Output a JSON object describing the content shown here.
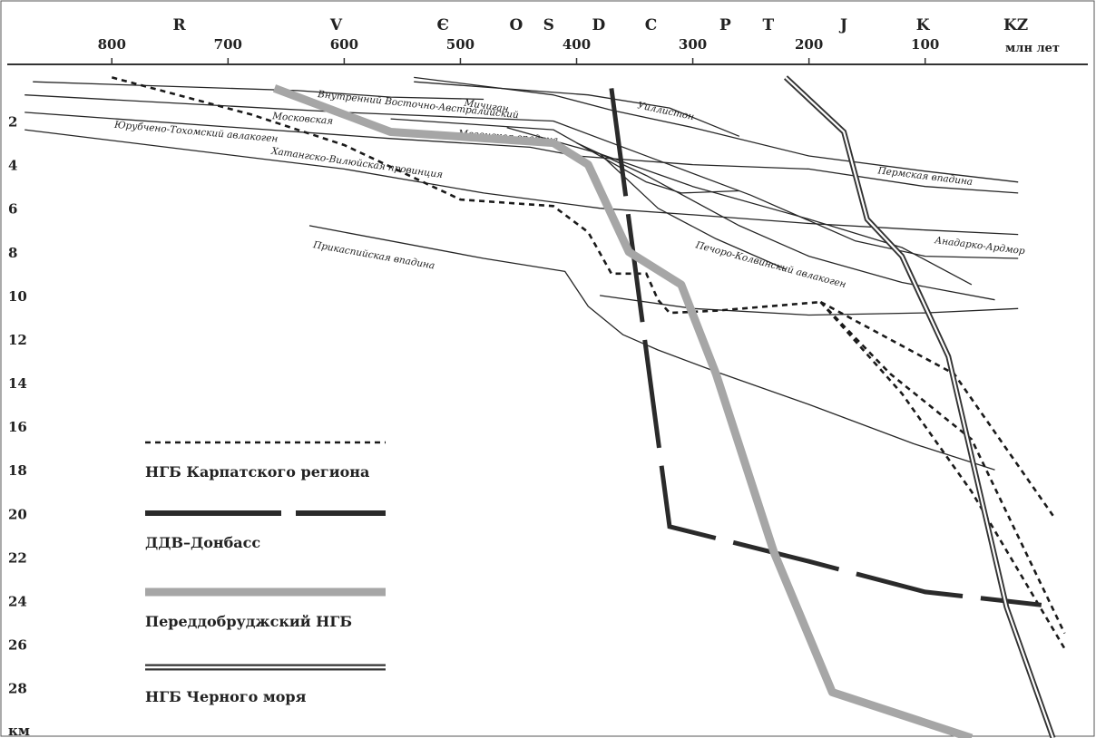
{
  "chart_data": {
    "type": "line",
    "x_axis": {
      "label": "млн лет",
      "reversed": true,
      "ticks": [
        800,
        700,
        600,
        500,
        400,
        300,
        200,
        100
      ],
      "range": [
        890,
        -40
      ],
      "periods": [
        {
          "label": "R",
          "age": 742
        },
        {
          "label": "V",
          "age": 607
        },
        {
          "label": "Є",
          "age": 515
        },
        {
          "label": "O",
          "age": 452
        },
        {
          "label": "S",
          "age": 424
        },
        {
          "label": "D",
          "age": 381
        },
        {
          "label": "C",
          "age": 336
        },
        {
          "label": "P",
          "age": 272
        },
        {
          "label": "T",
          "age": 235
        },
        {
          "label": "J",
          "age": 170
        },
        {
          "label": "K",
          "age": 102
        },
        {
          "label": "KZ",
          "age": 22
        }
      ]
    },
    "y_axis": {
      "label": "км",
      "reversed": true,
      "ticks": [
        2,
        4,
        6,
        8,
        10,
        12,
        14,
        16,
        18,
        20,
        22,
        24,
        26,
        28
      ],
      "range": [
        -0.6,
        30.3
      ]
    },
    "basins": [
      {
        "name": "Внутренний Восточно-Австралийский",
        "points": [
          [
            868,
            0.2
          ],
          [
            640,
            0.6
          ],
          [
            560,
            0.9
          ],
          [
            480,
            1.0
          ]
        ],
        "label_at": [
          623,
          0.9
        ],
        "label_angle": 6
      },
      {
        "name": "Мичиган",
        "points": [
          [
            540,
            0.0
          ],
          [
            420,
            0.8
          ],
          [
            370,
            1.5
          ],
          [
            300,
            2.3
          ],
          [
            200,
            3.6
          ],
          [
            100,
            4.3
          ],
          [
            20,
            4.8
          ]
        ],
        "label_at": [
          497,
          1.3
        ],
        "label_angle": 8
      },
      {
        "name": "Уиллистон",
        "points": [
          [
            540,
            0.2
          ],
          [
            390,
            0.8
          ],
          [
            320,
            1.4
          ],
          [
            260,
            2.7
          ]
        ],
        "label_at": [
          348,
          1.4
        ],
        "label_angle": 12
      },
      {
        "name": "Московская",
        "points": [
          [
            875,
            0.8
          ],
          [
            600,
            1.6
          ],
          [
            420,
            2.0
          ],
          [
            330,
            3.8
          ],
          [
            250,
            5.4
          ],
          [
            160,
            7.5
          ],
          [
            100,
            8.2
          ],
          [
            20,
            8.3
          ]
        ],
        "label_at": [
          662,
          1.9
        ],
        "label_angle": 5
      },
      {
        "name": "Мезенская впадина",
        "points": [
          [
            560,
            1.9
          ],
          [
            420,
            2.4
          ],
          [
            340,
            4.8
          ],
          [
            310,
            5.3
          ],
          [
            260,
            5.2
          ]
        ],
        "label_at": [
          502,
          2.7
        ],
        "label_angle": 4
      },
      {
        "name": "Юрубчено-Тохомский авлакоген",
        "points": [
          [
            875,
            1.6
          ],
          [
            560,
            2.8
          ],
          [
            440,
            3.2
          ],
          [
            400,
            3.6
          ],
          [
            300,
            4.0
          ],
          [
            200,
            4.2
          ],
          [
            100,
            5.0
          ],
          [
            20,
            5.3
          ]
        ],
        "label_at": [
          798,
          2.3
        ],
        "label_angle": 5
      },
      {
        "name": "Хатангско-Вилюйская провинция",
        "points": [
          [
            875,
            2.4
          ],
          [
            600,
            4.2
          ],
          [
            480,
            5.3
          ],
          [
            380,
            6.0
          ],
          [
            300,
            6.3
          ],
          [
            200,
            6.7
          ],
          [
            100,
            7.0
          ],
          [
            20,
            7.2
          ]
        ],
        "label_at": [
          663,
          3.5
        ],
        "label_angle": 8
      },
      {
        "name": "Пермская впадина",
        "points": [
          [
            460,
            2.3
          ],
          [
            380,
            3.5
          ],
          [
            300,
            5.0
          ],
          [
            200,
            6.5
          ],
          [
            120,
            7.8
          ],
          [
            60,
            9.5
          ]
        ],
        "label_at": [
          141,
          4.4
        ],
        "label_angle": 7
      },
      {
        "name": "Анадарко-Ардмор",
        "points": [
          [
            400,
            3.0
          ],
          [
            340,
            4.5
          ],
          [
            260,
            6.8
          ],
          [
            200,
            8.2
          ],
          [
            120,
            9.4
          ],
          [
            40,
            10.2
          ]
        ],
        "label_at": [
          92,
          7.6
        ],
        "label_angle": 7
      },
      {
        "name": "Печоро-Колвинский авлакоген",
        "points": [
          [
            380,
            3.5
          ],
          [
            330,
            6.0
          ],
          [
            280,
            7.4
          ],
          [
            220,
            8.8
          ]
        ],
        "label_at": [
          298,
          7.8
        ],
        "label_angle": 15
      },
      {
        "name": "Прикаспийская впадина",
        "points": [
          [
            630,
            6.8
          ],
          [
            480,
            8.3
          ],
          [
            410,
            8.9
          ],
          [
            390,
            10.5
          ],
          [
            360,
            11.8
          ],
          [
            330,
            12.5
          ],
          [
            280,
            13.5
          ],
          [
            200,
            15.0
          ],
          [
            110,
            16.8
          ],
          [
            40,
            18.0
          ]
        ],
        "label_at": [
          627,
          7.8
        ],
        "label_angle": 10
      },
      {
        "name": "",
        "points": [
          [
            380,
            10.0
          ],
          [
            300,
            10.6
          ],
          [
            200,
            10.9
          ],
          [
            100,
            10.8
          ],
          [
            20,
            10.6
          ]
        ]
      }
    ],
    "series": [
      {
        "name": "НГБ Карпатского региона",
        "style": "dashed",
        "color": "#1a1a1a",
        "points": [
          [
            800,
            0.0
          ],
          [
            680,
            1.7
          ],
          [
            600,
            3.1
          ],
          [
            500,
            5.6
          ],
          [
            420,
            5.9
          ],
          [
            390,
            7.1
          ],
          [
            370,
            9.0
          ],
          [
            340,
            9.0
          ],
          [
            330,
            10.2
          ],
          [
            320,
            10.8
          ],
          [
            280,
            10.7
          ],
          [
            190,
            10.3
          ]
        ],
        "fan": [
          [
            [
              190,
              10.3
            ],
            [
              75,
              13.6
            ],
            [
              -10,
              20.1
            ]
          ],
          [
            [
              190,
              10.3
            ],
            [
              130,
              13.6
            ],
            [
              60,
              16.6
            ],
            [
              -20,
              25.5
            ]
          ],
          [
            [
              190,
              10.3
            ],
            [
              120,
              14.5
            ],
            [
              60,
              19.0
            ],
            [
              -20,
              26.2
            ]
          ]
        ]
      },
      {
        "name": "ДДВ–Донбасс",
        "style": "long-dash",
        "color": "#2a2a2a",
        "points": [
          [
            370,
            0.5
          ],
          [
            320,
            20.6
          ],
          [
            200,
            22.2
          ],
          [
            100,
            23.6
          ],
          [
            0,
            24.2
          ]
        ]
      },
      {
        "name": "Переддобруджский НГБ",
        "style": "thick",
        "color": "#a6a6a6",
        "points": [
          [
            660,
            0.5
          ],
          [
            560,
            2.5
          ],
          [
            420,
            3.0
          ],
          [
            390,
            4.0
          ],
          [
            355,
            8.0
          ],
          [
            310,
            9.5
          ],
          [
            280,
            13.6
          ],
          [
            230,
            21.8
          ],
          [
            180,
            28.2
          ],
          [
            60,
            30.3
          ]
        ]
      },
      {
        "name": "НГБ Черного моря",
        "style": "double",
        "color": "#333333",
        "points": [
          [
            220,
            0.0
          ],
          [
            170,
            2.5
          ],
          [
            150,
            6.5
          ],
          [
            120,
            8.2
          ],
          [
            80,
            12.8
          ],
          [
            30,
            24.3
          ],
          [
            -10,
            30.3
          ]
        ]
      }
    ]
  }
}
